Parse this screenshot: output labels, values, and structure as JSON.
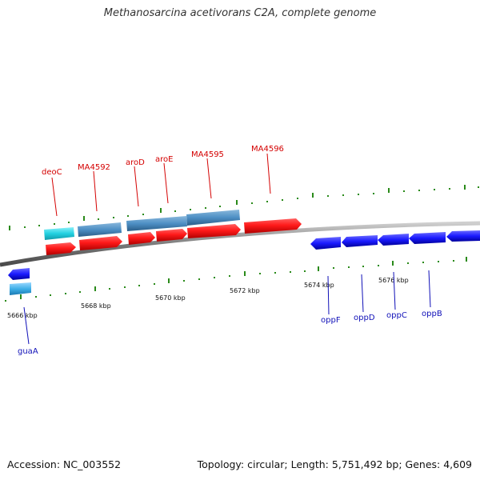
{
  "title": "Methanosarcina acetivorans C2A, complete genome",
  "footer": {
    "accession": "Accession: NC_003552",
    "summary": "Topology: circular; Length: 5,751,492 bp; Genes: 4,609"
  },
  "scale": {
    "ticks": [
      "5666 kbp",
      "5668 kbp",
      "5670 kbp",
      "5672 kbp",
      "5674 kbp",
      "5676 kbp"
    ]
  },
  "labels": {
    "top": [
      "deoC",
      "MA4592",
      "aroD",
      "aroE",
      "MA4595",
      "MA4596"
    ],
    "bottom": [
      "guaA",
      "oppF",
      "oppD",
      "oppC",
      "oppB"
    ]
  },
  "colors": {
    "forward_cds": "#ff1a1a",
    "forward_gene": "#4d8fc4",
    "forward_rna": "#22d0e0",
    "reverse_cds": "#1a1aff",
    "reverse_gene": "#3fb0e8",
    "backbone": "#888888",
    "tick": "#2a8a1a",
    "top_label": "#d40000",
    "bottom_label": "#1010b8"
  }
}
